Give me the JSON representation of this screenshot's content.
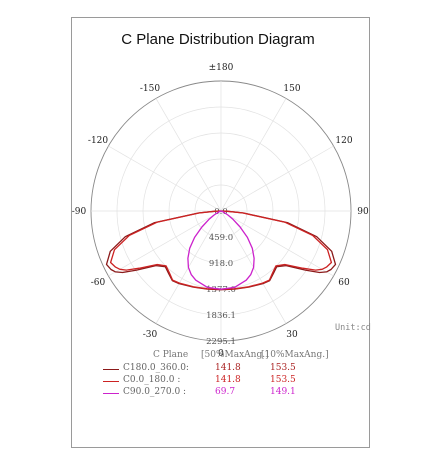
{
  "chart_data": {
    "type": "polar-line",
    "title": "C Plane Distribution Diagram",
    "unit_label": "Unit:cd",
    "angle_labels": [
      {
        "angle": 180,
        "text": "±180"
      },
      {
        "angle": 150,
        "text": "150"
      },
      {
        "angle": -150,
        "text": "-150"
      },
      {
        "angle": 120,
        "text": "120"
      },
      {
        "angle": -120,
        "text": "-120"
      },
      {
        "angle": 90,
        "text": "90"
      },
      {
        "angle": -90,
        "text": "-90"
      },
      {
        "angle": 60,
        "text": "60"
      },
      {
        "angle": -60,
        "text": "-60"
      },
      {
        "angle": 30,
        "text": "30"
      },
      {
        "angle": -30,
        "text": "-30"
      },
      {
        "angle": 0,
        "text": "0"
      }
    ],
    "radial_labels": [
      "0.0",
      "459.0",
      "918.0",
      "1377.0",
      "1836.1",
      "2295.1"
    ],
    "r_max": 2295.1,
    "series": [
      {
        "name": "C180.0_360.0",
        "color": "#8b1a1a",
        "points": [
          [
            0,
            1390
          ],
          [
            10,
            1400
          ],
          [
            20,
            1430
          ],
          [
            30,
            1480
          ],
          [
            35,
            1500
          ],
          [
            40,
            1440
          ],
          [
            45,
            1390
          ],
          [
            50,
            1500
          ],
          [
            55,
            1820
          ],
          [
            58,
            2050
          ],
          [
            60,
            2150
          ],
          [
            62,
            2200
          ],
          [
            65,
            2230
          ],
          [
            70,
            2080
          ],
          [
            75,
            1750
          ],
          [
            80,
            1200
          ],
          [
            85,
            400
          ],
          [
            88,
            100
          ],
          [
            90,
            0
          ]
        ]
      },
      {
        "name": "C0.0_180.0",
        "color": "#cc2222",
        "points": [
          [
            0,
            1380
          ],
          [
            10,
            1395
          ],
          [
            20,
            1425
          ],
          [
            30,
            1470
          ],
          [
            35,
            1490
          ],
          [
            40,
            1420
          ],
          [
            45,
            1370
          ],
          [
            50,
            1470
          ],
          [
            55,
            1760
          ],
          [
            58,
            1970
          ],
          [
            60,
            2060
          ],
          [
            62,
            2110
          ],
          [
            65,
            2150
          ],
          [
            70,
            2000
          ],
          [
            75,
            1680
          ],
          [
            80,
            1150
          ],
          [
            85,
            380
          ],
          [
            88,
            90
          ],
          [
            90,
            0
          ]
        ]
      },
      {
        "name": "C90.0_270.0",
        "color": "#cc22cc",
        "points": [
          [
            0,
            1380
          ],
          [
            10,
            1370
          ],
          [
            20,
            1300
          ],
          [
            25,
            1240
          ],
          [
            30,
            1150
          ],
          [
            35,
            1020
          ],
          [
            40,
            860
          ],
          [
            45,
            660
          ],
          [
            50,
            440
          ],
          [
            55,
            260
          ],
          [
            60,
            140
          ],
          [
            70,
            40
          ],
          [
            80,
            10
          ],
          [
            90,
            0
          ]
        ]
      }
    ],
    "legend": {
      "header": [
        "C Plane",
        "[50%MaxAng.]",
        "[10%MaxAng.]"
      ],
      "rows": [
        {
          "name": "C180.0_360.0:",
          "v50": "141.8",
          "v10": "153.5",
          "color": "#8b1a1a",
          "text_color": "#aa2222"
        },
        {
          "name": "C0.0_180.0  :",
          "v50": "141.8",
          "v10": "153.5",
          "color": "#cc2222",
          "text_color": "#cc2222"
        },
        {
          "name": "C90.0_270.0 :",
          "v50": "69.7",
          "v10": "149.1",
          "color": "#cc22cc",
          "text_color": "#cc22cc"
        }
      ]
    }
  }
}
